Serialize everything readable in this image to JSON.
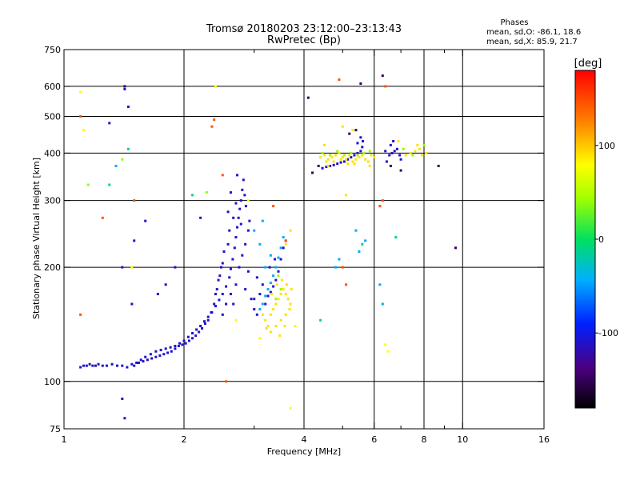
{
  "chart_data": {
    "type": "scatter",
    "title": "Tromsø 20180203 23:12:00–23:13:43",
    "subtitle": "RwPretec (Bp)",
    "xlabel": "Frequency [MHz]",
    "ylabel": "Stationary phase Virtual Height [km]",
    "x_scale": "log",
    "y_scale": "log",
    "xlim": [
      1,
      16
    ],
    "ylim": [
      75,
      750
    ],
    "x_ticks": [
      1,
      2,
      4,
      6,
      8,
      10,
      16
    ],
    "x_tick_labels": [
      "1",
      "2",
      "4",
      "6",
      "8",
      "10",
      "16"
    ],
    "x_minor_ticks": [
      3,
      5,
      7,
      9
    ],
    "y_ticks": [
      75,
      100,
      200,
      300,
      400,
      500,
      600,
      750
    ],
    "y_tick_labels": [
      "75",
      "100",
      "200",
      "300",
      "400",
      "500",
      "600",
      "750"
    ],
    "grid": true,
    "phase_box": {
      "heading": "Phases",
      "line_o": "mean, sd,O: -86.1, 18.6",
      "line_x": "mean, sd,X:  85.9, 21.7"
    },
    "colorbar": {
      "label": "[deg]",
      "range": [
        -180,
        180
      ],
      "ticks": [
        -100,
        0,
        100
      ],
      "tick_labels": [
        "-100",
        "0",
        "100"
      ]
    },
    "series": [
      {
        "note_phase": -110,
        "points": [
          [
            1.1,
            109
          ],
          [
            1.12,
            110
          ],
          [
            1.14,
            110
          ],
          [
            1.16,
            111
          ],
          [
            1.18,
            110
          ],
          [
            1.2,
            110
          ],
          [
            1.22,
            111
          ],
          [
            1.25,
            110
          ],
          [
            1.28,
            110
          ],
          [
            1.32,
            111
          ],
          [
            1.36,
            110
          ],
          [
            1.4,
            110
          ],
          [
            1.44,
            109
          ],
          [
            1.48,
            111
          ],
          [
            1.52,
            112
          ],
          [
            1.56,
            114
          ],
          [
            1.6,
            116
          ],
          [
            1.65,
            118
          ],
          [
            1.7,
            120
          ],
          [
            1.75,
            121
          ],
          [
            1.8,
            122
          ],
          [
            1.85,
            123
          ],
          [
            1.9,
            124
          ],
          [
            1.95,
            126
          ],
          [
            2.0,
            128
          ],
          [
            2.05,
            131
          ],
          [
            2.1,
            134
          ],
          [
            2.15,
            137
          ],
          [
            2.2,
            140
          ],
          [
            2.25,
            144
          ],
          [
            2.3,
            148
          ],
          [
            2.35,
            152
          ],
          [
            2.4,
            158
          ],
          [
            2.45,
            164
          ],
          [
            2.5,
            170
          ],
          [
            2.55,
            178
          ],
          [
            2.6,
            188
          ],
          [
            2.62,
            198
          ],
          [
            2.65,
            210
          ],
          [
            2.68,
            225
          ],
          [
            2.7,
            240
          ],
          [
            2.72,
            255
          ],
          [
            2.74,
            270
          ],
          [
            2.76,
            285
          ],
          [
            2.78,
            300
          ],
          [
            2.8,
            320
          ],
          [
            2.82,
            340
          ],
          [
            2.7,
            180
          ],
          [
            2.62,
            170
          ],
          [
            2.55,
            160
          ],
          [
            2.5,
            150
          ],
          [
            2.66,
            160
          ],
          [
            2.75,
            200
          ],
          [
            2.8,
            215
          ],
          [
            2.85,
            230
          ],
          [
            2.9,
            250
          ],
          [
            2.92,
            265
          ],
          [
            2.58,
            230
          ],
          [
            2.6,
            250
          ],
          [
            2.48,
            200
          ],
          [
            2.52,
            220
          ],
          [
            2.44,
            185
          ],
          [
            2.4,
            170
          ],
          [
            2.85,
            175
          ],
          [
            2.95,
            165
          ],
          [
            3.0,
            155
          ],
          [
            3.05,
            150
          ],
          [
            2.9,
            195
          ],
          [
            2.78,
            260
          ],
          [
            2.84,
            310
          ],
          [
            2.86,
            290
          ],
          [
            2.72,
            350
          ],
          [
            2.62,
            315
          ],
          [
            2.58,
            280
          ],
          [
            2.66,
            270
          ],
          [
            2.7,
            295
          ],
          [
            2.5,
            205
          ],
          [
            2.46,
            190
          ],
          [
            2.42,
            175
          ],
          [
            2.38,
            160
          ],
          [
            2.34,
            152
          ],
          [
            2.3,
            145
          ],
          [
            2.26,
            142
          ],
          [
            2.22,
            138
          ],
          [
            2.18,
            135
          ],
          [
            2.14,
            132
          ],
          [
            2.1,
            130
          ],
          [
            2.06,
            128
          ],
          [
            2.02,
            126
          ],
          [
            1.98,
            125
          ],
          [
            1.94,
            124
          ],
          [
            1.9,
            122
          ],
          [
            1.86,
            120
          ],
          [
            1.82,
            119
          ],
          [
            1.78,
            118
          ],
          [
            1.74,
            117
          ],
          [
            1.7,
            116
          ],
          [
            1.66,
            115
          ],
          [
            1.62,
            114
          ],
          [
            1.58,
            113
          ],
          [
            1.54,
            112
          ],
          [
            1.5,
            110
          ],
          [
            4.45,
            365
          ],
          [
            4.55,
            368
          ],
          [
            4.65,
            370
          ],
          [
            4.75,
            372
          ],
          [
            4.85,
            375
          ],
          [
            4.95,
            378
          ],
          [
            5.05,
            380
          ],
          [
            5.15,
            385
          ],
          [
            5.25,
            390
          ],
          [
            5.35,
            395
          ],
          [
            5.45,
            400
          ],
          [
            5.55,
            405
          ],
          [
            5.6,
            415
          ],
          [
            5.62,
            430
          ],
          [
            5.55,
            440
          ],
          [
            5.45,
            425
          ],
          [
            6.55,
            395
          ],
          [
            6.65,
            400
          ],
          [
            6.75,
            405
          ],
          [
            6.85,
            410
          ],
          [
            6.95,
            395
          ],
          [
            7.0,
            385
          ],
          [
            6.6,
            420
          ],
          [
            6.7,
            430
          ],
          [
            6.4,
            405
          ],
          [
            6.45,
            380
          ],
          [
            1.4,
            200
          ],
          [
            1.5,
            235
          ],
          [
            1.6,
            265
          ],
          [
            1.72,
            170
          ],
          [
            1.8,
            180
          ],
          [
            1.9,
            200
          ],
          [
            2.2,
            270
          ],
          [
            1.42,
            590
          ],
          [
            1.45,
            530
          ],
          [
            1.3,
            480
          ],
          [
            1.48,
            160
          ],
          [
            1.4,
            90
          ],
          [
            1.42,
            80
          ]
        ]
      },
      {
        "note_phase": -45,
        "points": [
          [
            3.1,
            155
          ],
          [
            3.15,
            160
          ],
          [
            3.2,
            168
          ],
          [
            3.25,
            175
          ],
          [
            3.3,
            182
          ],
          [
            3.35,
            190
          ],
          [
            3.4,
            200
          ],
          [
            3.45,
            212
          ],
          [
            3.5,
            225
          ],
          [
            3.55,
            240
          ],
          [
            3.2,
            200
          ],
          [
            3.3,
            215
          ],
          [
            3.1,
            230
          ],
          [
            3.0,
            250
          ],
          [
            3.15,
            265
          ],
          [
            5.7,
            235
          ],
          [
            5.5,
            220
          ],
          [
            5.4,
            250
          ],
          [
            4.8,
            200
          ],
          [
            4.9,
            210
          ],
          [
            6.2,
            180
          ],
          [
            6.3,
            160
          ],
          [
            1.35,
            370
          ]
        ]
      },
      {
        "note_phase": -110,
        "points": [
          [
            3.2,
            160
          ],
          [
            3.25,
            168
          ],
          [
            3.3,
            172
          ],
          [
            3.35,
            178
          ],
          [
            3.4,
            185
          ],
          [
            3.45,
            195
          ],
          [
            3.5,
            210
          ],
          [
            3.55,
            225
          ],
          [
            3.6,
            235
          ],
          [
            3.1,
            170
          ],
          [
            3.15,
            180
          ],
          [
            3.05,
            188
          ],
          [
            3.0,
            165
          ],
          [
            3.28,
            200
          ],
          [
            3.38,
            210
          ]
        ]
      },
      {
        "note_phase": 90,
        "points": [
          [
            3.15,
            150
          ],
          [
            3.2,
            145
          ],
          [
            3.25,
            140
          ],
          [
            3.3,
            150
          ],
          [
            3.35,
            155
          ],
          [
            3.4,
            160
          ],
          [
            3.45,
            165
          ],
          [
            3.5,
            170
          ],
          [
            3.55,
            175
          ],
          [
            3.6,
            170
          ],
          [
            3.65,
            165
          ],
          [
            3.7,
            160
          ],
          [
            3.6,
            150
          ],
          [
            3.5,
            145
          ],
          [
            3.4,
            140
          ],
          [
            3.3,
            135
          ],
          [
            3.22,
            138
          ],
          [
            3.32,
            170
          ],
          [
            3.42,
            180
          ],
          [
            3.52,
            185
          ],
          [
            3.62,
            180
          ],
          [
            3.72,
            175
          ],
          [
            3.68,
            155
          ],
          [
            3.58,
            140
          ],
          [
            3.48,
            132
          ],
          [
            4.4,
            390
          ],
          [
            4.5,
            395
          ],
          [
            4.6,
            385
          ],
          [
            4.7,
            390
          ],
          [
            4.8,
            395
          ],
          [
            4.9,
            400
          ],
          [
            5.0,
            390
          ],
          [
            5.1,
            385
          ],
          [
            5.2,
            395
          ],
          [
            5.3,
            380
          ],
          [
            5.4,
            385
          ],
          [
            5.5,
            390
          ],
          [
            5.6,
            395
          ],
          [
            5.7,
            385
          ],
          [
            5.8,
            380
          ],
          [
            5.9,
            395
          ],
          [
            6.0,
            390
          ],
          [
            4.55,
            380
          ],
          [
            4.75,
            380
          ],
          [
            4.95,
            385
          ],
          [
            5.15,
            375
          ],
          [
            5.35,
            375
          ],
          [
            7.2,
            395
          ],
          [
            7.4,
            400
          ],
          [
            7.6,
            405
          ],
          [
            7.8,
            410
          ],
          [
            7.9,
            395
          ],
          [
            8.1,
            400
          ],
          [
            7.7,
            420
          ],
          [
            6.9,
            430
          ],
          [
            5.0,
            470
          ],
          [
            5.3,
            460
          ],
          [
            4.6,
            370
          ],
          [
            5.85,
            370
          ],
          [
            3.7,
            250
          ],
          [
            3.6,
            230
          ],
          [
            5.1,
            310
          ],
          [
            4.5,
            420
          ]
        ]
      },
      {
        "note_phase": 40,
        "points": [
          [
            4.45,
            400
          ],
          [
            4.65,
            395
          ],
          [
            4.85,
            405
          ],
          [
            5.05,
            395
          ],
          [
            5.25,
            400
          ],
          [
            5.45,
            395
          ],
          [
            5.65,
            400
          ],
          [
            5.85,
            405
          ],
          [
            7.1,
            410
          ],
          [
            7.5,
            395
          ],
          [
            8.0,
            420
          ],
          [
            3.4,
            165
          ],
          [
            3.5,
            175
          ],
          [
            3.45,
            190
          ],
          [
            1.15,
            330
          ],
          [
            2.28,
            315
          ],
          [
            1.4,
            385
          ]
        ]
      },
      {
        "note_phase": 145,
        "points": [
          [
            2.35,
            470
          ],
          [
            2.38,
            490
          ],
          [
            4.9,
            625
          ],
          [
            6.2,
            290
          ],
          [
            6.3,
            300
          ],
          [
            5.0,
            200
          ],
          [
            5.1,
            180
          ],
          [
            3.35,
            290
          ],
          [
            1.5,
            300
          ],
          [
            1.25,
            270
          ],
          [
            2.55,
            100
          ],
          [
            6.4,
            600
          ],
          [
            2.5,
            350
          ],
          [
            3.6,
            235
          ],
          [
            1.1,
            150
          ],
          [
            1.1,
            500
          ]
        ]
      },
      {
        "note_phase": -150,
        "points": [
          [
            5.55,
            610
          ],
          [
            6.3,
            640
          ],
          [
            5.2,
            450
          ],
          [
            5.4,
            460
          ],
          [
            6.6,
            370
          ],
          [
            7.0,
            360
          ],
          [
            8.7,
            370
          ],
          [
            9.6,
            225
          ],
          [
            4.1,
            560
          ],
          [
            4.35,
            370
          ],
          [
            4.2,
            355
          ],
          [
            1.42,
            600
          ]
        ]
      },
      {
        "note_phase": 80,
        "points": [
          [
            1.1,
            580
          ],
          [
            1.12,
            460
          ],
          [
            2.4,
            600
          ],
          [
            3.8,
            140
          ],
          [
            3.7,
            85
          ],
          [
            1.48,
            200
          ],
          [
            2.7,
            145
          ],
          [
            2.9,
            300
          ],
          [
            3.1,
            130
          ],
          [
            6.5,
            120
          ],
          [
            6.4,
            125
          ]
        ]
      },
      {
        "note_phase": -10,
        "points": [
          [
            1.45,
            410
          ],
          [
            2.1,
            310
          ],
          [
            4.4,
            145
          ],
          [
            5.6,
            230
          ],
          [
            6.8,
            240
          ],
          [
            1.3,
            330
          ]
        ]
      }
    ]
  }
}
